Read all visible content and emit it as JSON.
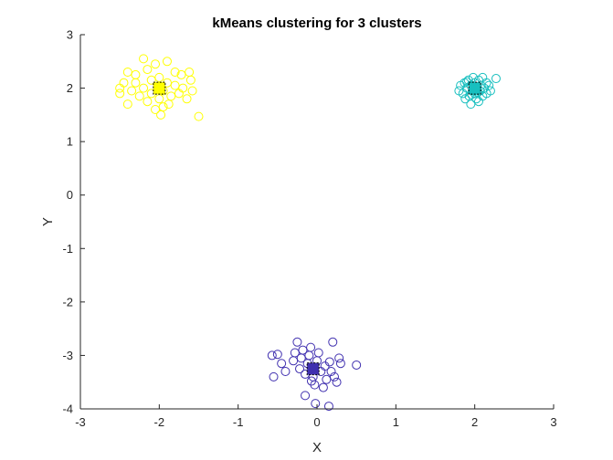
{
  "chart_data": {
    "type": "scatter",
    "title": "kMeans clustering for 3 clusters",
    "xlabel": "X",
    "ylabel": "Y",
    "xlim": [
      -3,
      3
    ],
    "ylim": [
      -4,
      3
    ],
    "xticks": [
      -3,
      -2,
      -1,
      0,
      1,
      2,
      3
    ],
    "yticks": [
      -4,
      -3,
      -2,
      -1,
      0,
      1,
      2,
      3
    ],
    "grid": false,
    "legend": "none",
    "series": [
      {
        "color": "#ffff00",
        "marker": "circle",
        "points": [
          [
            -2.5,
            1.9
          ],
          [
            -2.5,
            2.0
          ],
          [
            -2.4,
            1.7
          ],
          [
            -2.4,
            2.3
          ],
          [
            -2.35,
            1.95
          ],
          [
            -2.3,
            2.1
          ],
          [
            -2.3,
            2.25
          ],
          [
            -2.25,
            1.85
          ],
          [
            -2.2,
            2.0
          ],
          [
            -2.2,
            2.55
          ],
          [
            -2.15,
            1.75
          ],
          [
            -2.15,
            2.35
          ],
          [
            -2.1,
            2.15
          ],
          [
            -2.1,
            1.9
          ],
          [
            -2.05,
            2.45
          ],
          [
            -2.0,
            1.8
          ],
          [
            -2.0,
            2.2
          ],
          [
            -1.98,
            1.5
          ],
          [
            -1.95,
            1.95
          ],
          [
            -1.95,
            1.65
          ],
          [
            -1.9,
            2.1
          ],
          [
            -1.9,
            2.5
          ],
          [
            -1.88,
            1.7
          ],
          [
            -1.85,
            1.85
          ],
          [
            -1.8,
            2.05
          ],
          [
            -1.8,
            2.3
          ],
          [
            -1.75,
            1.9
          ],
          [
            -1.72,
            2.25
          ],
          [
            -1.7,
            2.0
          ],
          [
            -1.65,
            1.8
          ],
          [
            -1.62,
            2.3
          ],
          [
            -1.6,
            2.15
          ],
          [
            -1.58,
            1.95
          ],
          [
            -1.5,
            1.47
          ],
          [
            -2.45,
            2.1
          ],
          [
            -2.05,
            1.6
          ]
        ]
      },
      {
        "color": "#17bfbf",
        "marker": "circle",
        "points": [
          [
            1.8,
            1.95
          ],
          [
            1.82,
            2.05
          ],
          [
            1.85,
            1.9
          ],
          [
            1.87,
            2.1
          ],
          [
            1.88,
            1.8
          ],
          [
            1.9,
            2.0
          ],
          [
            1.92,
            2.15
          ],
          [
            1.93,
            1.85
          ],
          [
            1.95,
            1.7
          ],
          [
            1.95,
            2.05
          ],
          [
            1.97,
            1.95
          ],
          [
            1.98,
            2.2
          ],
          [
            2.0,
            1.9
          ],
          [
            2.0,
            2.1
          ],
          [
            2.02,
            1.8
          ],
          [
            2.03,
            2.0
          ],
          [
            2.05,
            1.75
          ],
          [
            2.05,
            2.15
          ],
          [
            2.07,
            1.95
          ],
          [
            2.08,
            2.05
          ],
          [
            2.1,
            1.85
          ],
          [
            2.1,
            2.2
          ],
          [
            2.12,
            2.0
          ],
          [
            2.15,
            1.9
          ],
          [
            2.15,
            2.1
          ],
          [
            2.18,
            2.05
          ],
          [
            2.2,
            1.95
          ],
          [
            2.27,
            2.18
          ],
          [
            1.9,
            2.12
          ],
          [
            2.0,
            2.02
          ],
          [
            1.96,
            1.88
          ],
          [
            2.04,
            1.92
          ]
        ]
      },
      {
        "color": "#3f2faf",
        "marker": "circle",
        "points": [
          [
            -0.57,
            -3.0
          ],
          [
            -0.55,
            -3.4
          ],
          [
            -0.5,
            -2.98
          ],
          [
            -0.45,
            -3.15
          ],
          [
            -0.4,
            -3.3
          ],
          [
            -0.3,
            -3.1
          ],
          [
            -0.28,
            -2.95
          ],
          [
            -0.25,
            -2.75
          ],
          [
            -0.22,
            -3.25
          ],
          [
            -0.2,
            -3.05
          ],
          [
            -0.18,
            -2.9
          ],
          [
            -0.15,
            -3.35
          ],
          [
            -0.12,
            -3.15
          ],
          [
            -0.15,
            -3.75
          ],
          [
            -0.1,
            -3.0
          ],
          [
            -0.08,
            -2.85
          ],
          [
            -0.05,
            -3.4
          ],
          [
            -0.03,
            -3.55
          ],
          [
            0.0,
            -3.1
          ],
          [
            -0.02,
            -3.9
          ],
          [
            0.02,
            -2.95
          ],
          [
            0.05,
            -3.3
          ],
          [
            0.08,
            -3.6
          ],
          [
            0.1,
            -3.2
          ],
          [
            0.12,
            -3.45
          ],
          [
            0.15,
            -3.95
          ],
          [
            0.18,
            -3.3
          ],
          [
            0.2,
            -2.75
          ],
          [
            0.22,
            -3.4
          ],
          [
            0.25,
            -3.5
          ],
          [
            0.28,
            -3.05
          ],
          [
            0.3,
            -3.15
          ],
          [
            0.5,
            -3.18
          ],
          [
            -0.07,
            -3.48
          ],
          [
            0.16,
            -3.12
          ]
        ]
      }
    ],
    "centroids": [
      {
        "x": -2.0,
        "y": 2.0,
        "color": "#ffff00"
      },
      {
        "x": 2.0,
        "y": 2.0,
        "color": "#17bfbf"
      },
      {
        "x": -0.05,
        "y": -3.25,
        "color": "#3f2faf"
      }
    ]
  }
}
